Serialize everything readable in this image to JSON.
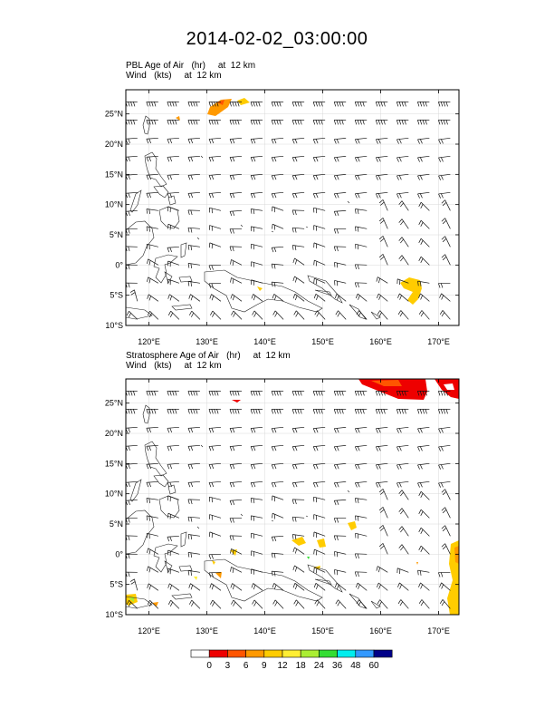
{
  "title": "2014-02-02_03:00:00",
  "panels": [
    {
      "field_title": "PBL Age of Air   (hr)     at  12 km",
      "wind_title": "Wind   (kts)     at  12 km",
      "lat_labels": [
        "25°N",
        "20°N",
        "15°N",
        "10°N",
        "5°N",
        "0°",
        "5°S",
        "10°S"
      ],
      "lon_labels": [
        "120°E",
        "130°E",
        "140°E",
        "150°E",
        "160°E",
        "170°E"
      ]
    },
    {
      "field_title": "Stratosphere Age of Air   (hr)     at  12 km",
      "wind_title": "Wind   (kts)     at  12 km",
      "lat_labels": [
        "25°N",
        "20°N",
        "15°N",
        "10°N",
        "5°N",
        "0°",
        "5°S",
        "10°S"
      ],
      "lon_labels": [
        "120°E",
        "130°E",
        "140°E",
        "150°E",
        "160°E",
        "170°E"
      ]
    }
  ],
  "colorbar": {
    "labels": [
      "0",
      "3",
      "6",
      "9",
      "12",
      "18",
      "24",
      "36",
      "48",
      "60"
    ],
    "colors": [
      "#ffffff",
      "#ee0000",
      "#ff5500",
      "#ff9900",
      "#ffcc00",
      "#ffee33",
      "#aaee33",
      "#33dd33",
      "#00eeee",
      "#3399ff",
      "#000088"
    ]
  },
  "extent": {
    "lon_min": 116,
    "lon_max": 173.5,
    "lat_min": -10,
    "lat_max": 29
  }
}
